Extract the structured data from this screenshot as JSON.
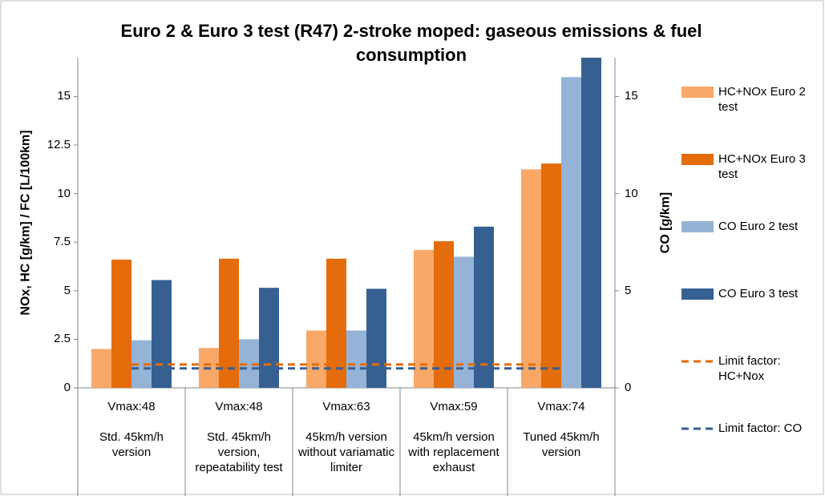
{
  "chart_data": {
    "type": "bar",
    "title": "Euro 2 & Euro 3 test (R47) 2-stroke moped: gaseous emissions & fuel consumption",
    "y_label": "NOx, HC [g/km] / FC [L/100km]",
    "y2_label": "CO [g/km]",
    "categories": [
      "Vmax:48",
      "Vmax:48",
      "Vmax:63",
      "Vmax:59",
      "Vmax:74"
    ],
    "category_descriptions": [
      "Std. 45km/h version",
      "Std. 45km/h version, repeatability test",
      "45km/h version without variamatic limiter",
      "45km/h version with replacement exhaust",
      "Tuned 45km/h version"
    ],
    "ylim": [
      0,
      17
    ],
    "yticks": [
      0,
      2.5,
      5,
      7.5,
      10,
      12.5,
      15
    ],
    "y2lim": [
      0,
      17
    ],
    "y2ticks": [
      0,
      5,
      10,
      15
    ],
    "series": [
      {
        "name": "HC+NOx Euro 2 test",
        "color": "#f9a868",
        "kind": "bar",
        "values": [
          2.0,
          2.05,
          2.95,
          7.1,
          11.25
        ]
      },
      {
        "name": "HC+NOx Euro 3 test",
        "color": "#e46c0a",
        "kind": "bar",
        "values": [
          6.6,
          6.65,
          6.65,
          7.55,
          11.55
        ]
      },
      {
        "name": "CO Euro 2 test",
        "color": "#95b3d7",
        "kind": "bar",
        "axis": "y2",
        "values": [
          2.45,
          2.5,
          2.95,
          6.75,
          16.0
        ]
      },
      {
        "name": "CO Euro 3 test",
        "color": "#366092",
        "kind": "bar",
        "axis": "y2",
        "values": [
          5.55,
          5.15,
          5.1,
          8.3,
          17.0
        ]
      },
      {
        "name": "Limit factor: HC+Nox",
        "color": "#e46c0a",
        "kind": "line",
        "dashed": true,
        "values": [
          1.2,
          1.2,
          1.2,
          1.2,
          1.2
        ]
      },
      {
        "name": "Limit factor: CO",
        "color": "#366092",
        "kind": "line",
        "dashed": true,
        "axis": "y2",
        "values": [
          1.0,
          1.0,
          1.0,
          1.0,
          1.0
        ]
      }
    ]
  }
}
